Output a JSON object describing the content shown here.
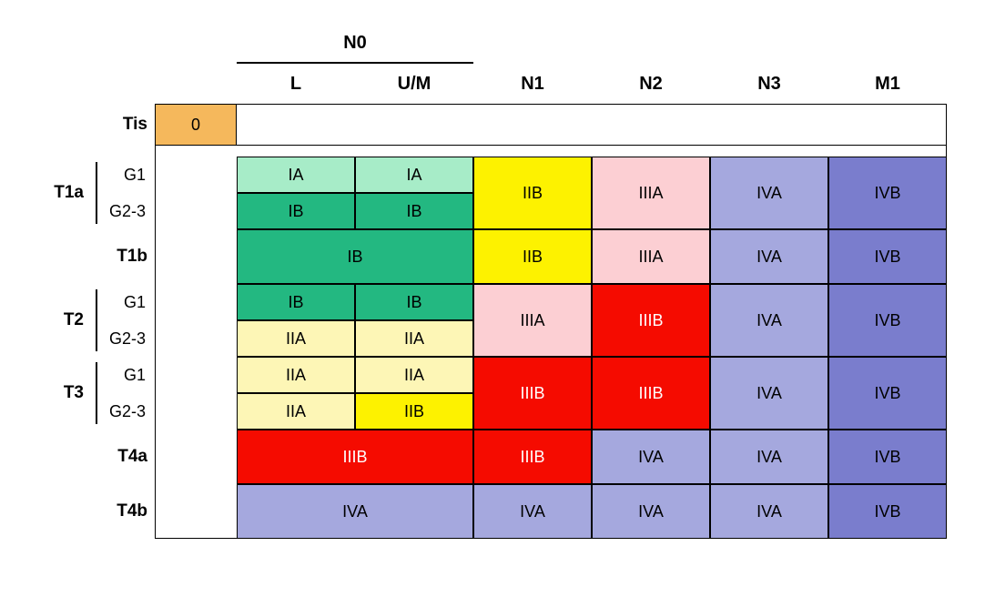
{
  "type": "table",
  "font_family": "Arial",
  "background_color": "#ffffff",
  "border_color": "#000000",
  "colors": {
    "orange": "#f5b85c",
    "teal_light": "#a7ecc8",
    "teal": "#23b881",
    "yellow_light": "#fdf6b6",
    "yellow": "#fdf200",
    "pink": "#fccfd3",
    "red": "#f50b00",
    "purple_light": "#a5a8de",
    "purple": "#7a7dcd",
    "white": "#ffffff"
  },
  "headers": {
    "n0": "N0",
    "L": "L",
    "UM": "U/M",
    "N1": "N1",
    "N2": "N2",
    "N3": "N3",
    "M1": "M1"
  },
  "rowLabels": {
    "Tis": "Tis",
    "T1a": "T1a",
    "T1b": "T1b",
    "T2": "T2",
    "T3": "T3",
    "T4a": "T4a",
    "T4b": "T4b",
    "G1": "G1",
    "G23": "G2-3"
  },
  "stages": {
    "O": "0",
    "IA": "IA",
    "IB": "IB",
    "IIA": "IIA",
    "IIB": "IIB",
    "IIIA": "IIIA",
    "IIIB": "IIIB",
    "IVA": "IVA",
    "IVB": "IVB"
  },
  "grid": {
    "tis": {
      "col3": {
        "stage": "O",
        "color": "orange"
      }
    },
    "t1a_g1": {
      "L": {
        "stage": "IA",
        "color": "teal_light"
      },
      "UM": {
        "stage": "IA",
        "color": "teal_light"
      }
    },
    "t1a_g23": {
      "L": {
        "stage": "IB",
        "color": "teal"
      },
      "UM": {
        "stage": "IB",
        "color": "teal"
      }
    },
    "t1a_merged": {
      "N1": {
        "stage": "IIB",
        "color": "yellow"
      },
      "N2": {
        "stage": "IIIA",
        "color": "pink"
      },
      "N3": {
        "stage": "IVA",
        "color": "purple_light"
      },
      "M1": {
        "stage": "IVB",
        "color": "purple"
      }
    },
    "t1b": {
      "LUM": {
        "stage": "IB",
        "color": "teal"
      },
      "N1": {
        "stage": "IIB",
        "color": "yellow"
      },
      "N2": {
        "stage": "IIIA",
        "color": "pink"
      },
      "N3": {
        "stage": "IVA",
        "color": "purple_light"
      },
      "M1": {
        "stage": "IVB",
        "color": "purple"
      }
    },
    "t2_g1": {
      "L": {
        "stage": "IB",
        "color": "teal"
      },
      "UM": {
        "stage": "IB",
        "color": "teal"
      }
    },
    "t2_g23": {
      "L": {
        "stage": "IIA",
        "color": "yellow_light"
      },
      "UM": {
        "stage": "IIA",
        "color": "yellow_light"
      }
    },
    "t2_merged": {
      "N1": {
        "stage": "IIIA",
        "color": "pink"
      },
      "N2": {
        "stage": "IIIB",
        "color": "red"
      },
      "N3": {
        "stage": "IVA",
        "color": "purple_light"
      },
      "M1": {
        "stage": "IVB",
        "color": "purple"
      }
    },
    "t3_g1": {
      "L": {
        "stage": "IIA",
        "color": "yellow_light"
      },
      "UM": {
        "stage": "IIA",
        "color": "yellow_light"
      }
    },
    "t3_g23": {
      "L": {
        "stage": "IIA",
        "color": "yellow_light"
      },
      "UM": {
        "stage": "IIB",
        "color": "yellow"
      }
    },
    "t3_merged": {
      "N1": {
        "stage": "IIIB",
        "color": "red"
      },
      "N2": {
        "stage": "IIIB",
        "color": "red"
      },
      "N3": {
        "stage": "IVA",
        "color": "purple_light"
      },
      "M1": {
        "stage": "IVB",
        "color": "purple"
      }
    },
    "t4a": {
      "LUM": {
        "stage": "IIIB",
        "color": "red"
      },
      "N1": {
        "stage": "IIIB",
        "color": "red"
      },
      "N2": {
        "stage": "IVA",
        "color": "purple_light"
      },
      "N3": {
        "stage": "IVA",
        "color": "purple_light"
      },
      "M1": {
        "stage": "IVB",
        "color": "purple"
      }
    },
    "t4b": {
      "LUM": {
        "stage": "IVA",
        "color": "purple_light"
      },
      "N1": {
        "stage": "IVA",
        "color": "purple_light"
      },
      "N2": {
        "stage": "IVA",
        "color": "purple_light"
      },
      "N3": {
        "stage": "IVA",
        "color": "purple_light"
      },
      "M1": {
        "stage": "IVB",
        "color": "purple"
      }
    }
  }
}
